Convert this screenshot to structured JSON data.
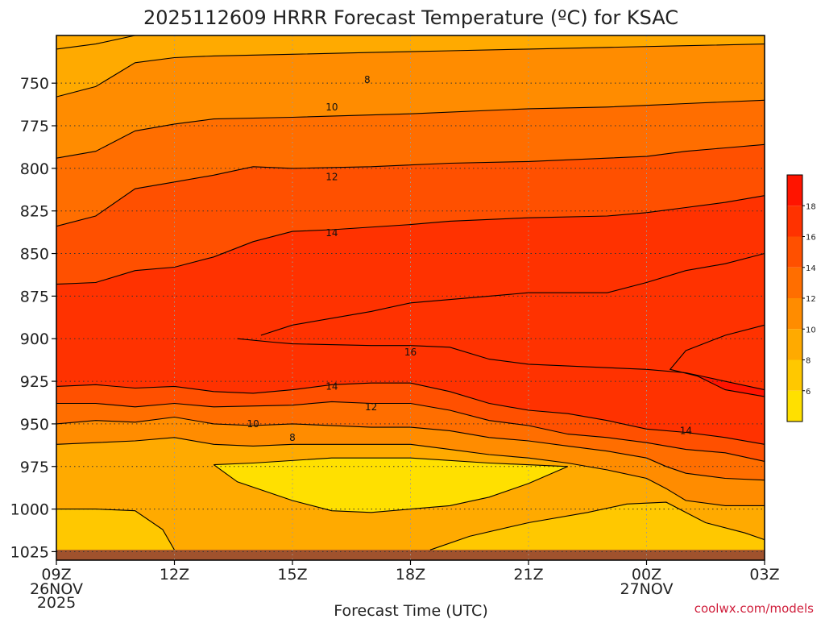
{
  "chart_data": {
    "type": "heatmap",
    "title": "2025112609 HRRR Forecast Temperature (ºC) for KSAC",
    "xlabel": "Forecast Time (UTC)",
    "ylabel": "",
    "x_ticks": [
      "09Z",
      "12Z",
      "15Z",
      "18Z",
      "21Z",
      "00Z",
      "03Z"
    ],
    "x_hours": [
      0,
      3,
      6,
      9,
      12,
      15,
      18
    ],
    "x_sublabels": [
      {
        "hour": 0,
        "lines": [
          "26NOV",
          "2025"
        ]
      },
      {
        "hour": 15,
        "lines": [
          "27NOV"
        ]
      }
    ],
    "y_ticks": [
      750,
      775,
      800,
      825,
      850,
      875,
      900,
      925,
      950,
      975,
      1000,
      1025
    ],
    "pressure_range": [
      722,
      1030
    ],
    "ground_level_hpa": 1024,
    "grid": true,
    "colorbar": {
      "levels": [
        6,
        8,
        10,
        12,
        14,
        16,
        18
      ],
      "colors": [
        "#FFE000",
        "#FFC800",
        "#FFAA00",
        "#FF8C00",
        "#FF6E00",
        "#FF5000",
        "#FF3200",
        "#FF1400"
      ]
    },
    "contour_labels": [
      {
        "hour": 7.9,
        "hpa": 748,
        "value": "8"
      },
      {
        "hour": 7.0,
        "hpa": 764,
        "value": "10"
      },
      {
        "hour": 7.0,
        "hpa": 805,
        "value": "12"
      },
      {
        "hour": 7.0,
        "hpa": 838,
        "value": "14"
      },
      {
        "hour": 9.0,
        "hpa": 908,
        "value": "16"
      },
      {
        "hour": 7.0,
        "hpa": 928,
        "value": "14"
      },
      {
        "hour": 8.0,
        "hpa": 940,
        "value": "12"
      },
      {
        "hour": 5.0,
        "hpa": 950,
        "value": "10"
      },
      {
        "hour": 6.0,
        "hpa": 958,
        "value": "8"
      },
      {
        "hour": 16.0,
        "hpa": 954,
        "value": "14"
      }
    ],
    "credit": "coolwx.com/models"
  }
}
